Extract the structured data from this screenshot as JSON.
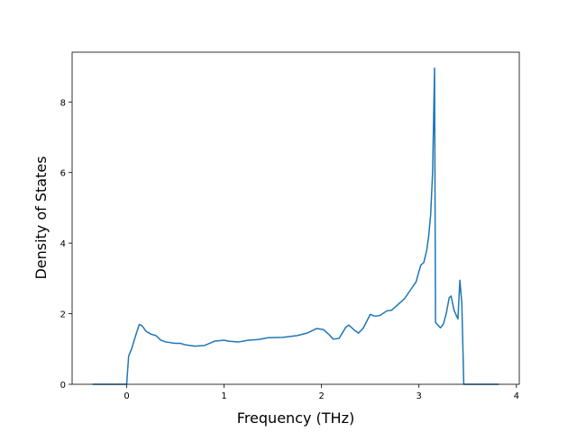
{
  "chart_data": {
    "type": "line",
    "xlabel": "Frequency (THz)",
    "ylabel": "Density of States",
    "x": [
      -0.35,
      -0.02,
      0.0,
      0.02,
      0.05,
      0.1,
      0.13,
      0.16,
      0.2,
      0.25,
      0.3,
      0.35,
      0.4,
      0.5,
      0.55,
      0.6,
      0.7,
      0.8,
      0.9,
      1.0,
      1.05,
      1.15,
      1.25,
      1.35,
      1.45,
      1.6,
      1.75,
      1.85,
      1.95,
      2.02,
      2.08,
      2.12,
      2.18,
      2.25,
      2.28,
      2.33,
      2.38,
      2.43,
      2.5,
      2.55,
      2.6,
      2.67,
      2.72,
      2.78,
      2.85,
      2.92,
      2.97,
      3.0,
      3.02,
      3.05,
      3.08,
      3.1,
      3.12,
      3.14,
      3.16,
      3.17,
      3.22,
      3.25,
      3.28,
      3.31,
      3.33,
      3.36,
      3.4,
      3.42,
      3.44,
      3.46,
      3.82
    ],
    "series": [
      {
        "color": "#1f77b4",
        "values": [
          0,
          0,
          0,
          0.8,
          1.0,
          1.45,
          1.7,
          1.65,
          1.5,
          1.42,
          1.38,
          1.25,
          1.2,
          1.16,
          1.16,
          1.12,
          1.08,
          1.1,
          1.22,
          1.25,
          1.22,
          1.2,
          1.25,
          1.27,
          1.32,
          1.33,
          1.38,
          1.45,
          1.58,
          1.55,
          1.4,
          1.28,
          1.3,
          1.62,
          1.68,
          1.55,
          1.45,
          1.6,
          1.98,
          1.93,
          1.95,
          2.08,
          2.1,
          2.25,
          2.42,
          2.7,
          2.9,
          3.2,
          3.38,
          3.45,
          3.8,
          4.2,
          4.8,
          6.0,
          8.96,
          1.75,
          1.6,
          1.7,
          2.0,
          2.45,
          2.5,
          2.1,
          1.85,
          2.95,
          2.3,
          0,
          0
        ]
      }
    ],
    "xlim": [
      -0.56,
      4.03
    ],
    "ylim": [
      0,
      9.41
    ],
    "xticks": [
      0,
      1,
      2,
      3,
      4
    ],
    "yticks": [
      0,
      2,
      4,
      6,
      8
    ]
  }
}
